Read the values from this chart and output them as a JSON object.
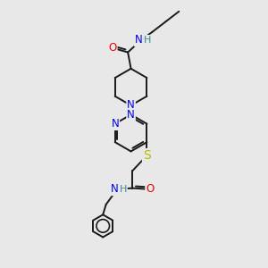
{
  "bg_color": "#e8e8e8",
  "bond_color": "#1a1a1a",
  "bond_width": 1.4,
  "atom_colors": {
    "N": "#0000ee",
    "O": "#ee0000",
    "S": "#bbbb00",
    "H": "#3a8a8a",
    "C": "#1a1a1a"
  },
  "font_size": 8.5,
  "fig_bg": "#e8e8e8",
  "xlim": [
    0,
    10
  ],
  "ylim": [
    0,
    13
  ]
}
